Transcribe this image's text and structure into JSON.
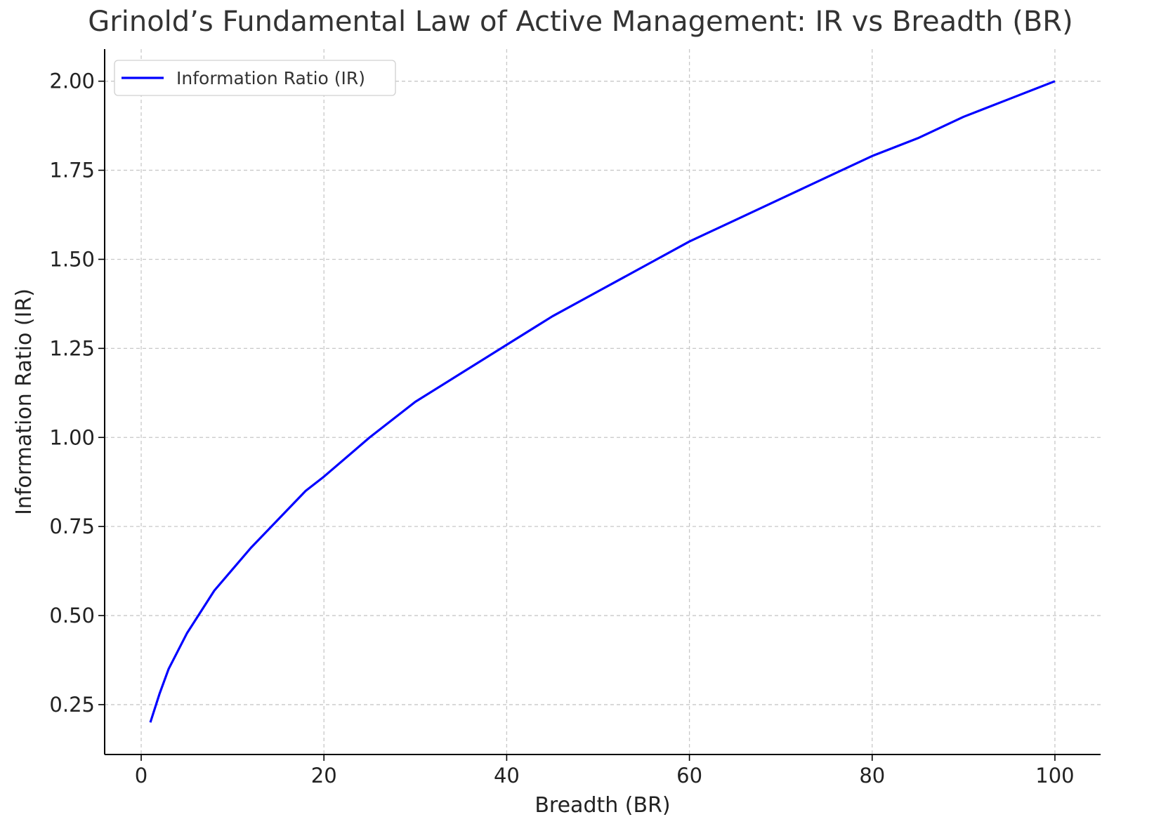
{
  "chart_data": {
    "type": "line",
    "title": "Grinold’s Fundamental Law of Active Management: IR vs Breadth (BR)",
    "xlabel": "Breadth (BR)",
    "ylabel": "Information Ratio (IR)",
    "xlim": [
      -4,
      105
    ],
    "ylim": [
      0.11,
      2.09
    ],
    "xticks": [
      0,
      20,
      40,
      60,
      80,
      100
    ],
    "xtick_labels": [
      "0",
      "20",
      "40",
      "60",
      "80",
      "100"
    ],
    "yticks": [
      0.25,
      0.5,
      0.75,
      1.0,
      1.25,
      1.5,
      1.75,
      2.0
    ],
    "ytick_labels": [
      "0.25",
      "0.50",
      "0.75",
      "1.00",
      "1.25",
      "1.50",
      "1.75",
      "2.00"
    ],
    "grid": true,
    "legend_position": "top-left",
    "series": [
      {
        "name": "Information Ratio (IR)",
        "color": "#0000ff",
        "x": [
          1,
          2,
          3,
          4,
          5,
          6,
          8,
          10,
          12,
          15,
          18,
          20,
          25,
          30,
          35,
          40,
          45,
          50,
          55,
          60,
          65,
          70,
          75,
          80,
          85,
          90,
          95,
          100
        ],
        "y": [
          0.2,
          0.28,
          0.35,
          0.4,
          0.45,
          0.49,
          0.57,
          0.63,
          0.69,
          0.77,
          0.85,
          0.89,
          1.0,
          1.1,
          1.18,
          1.26,
          1.34,
          1.41,
          1.48,
          1.55,
          1.61,
          1.67,
          1.73,
          1.79,
          1.84,
          1.9,
          1.95,
          2.0
        ]
      }
    ]
  }
}
